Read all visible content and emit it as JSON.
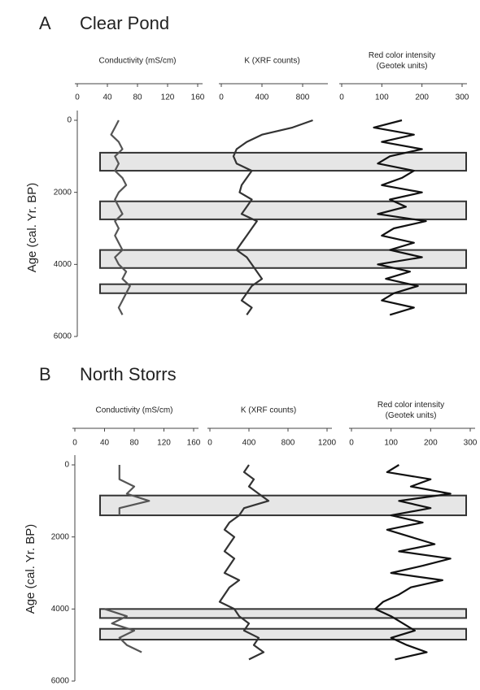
{
  "chart_data": [
    {
      "type": "line",
      "panel": "A",
      "title": "Clear Pond",
      "ylabel": "Age (cal. Yr. BP)",
      "ylim": [
        0,
        6000
      ],
      "yticks": [
        0,
        2000,
        4000,
        6000
      ],
      "x": [
        0,
        200,
        400,
        600,
        800,
        1000,
        1200,
        1400,
        1600,
        1800,
        2000,
        2200,
        2400,
        2600,
        2800,
        3000,
        3200,
        3400,
        3600,
        3800,
        4000,
        4200,
        4400,
        4600,
        4800,
        5000,
        5200,
        5400
      ],
      "bands": [
        [
          900,
          1400
        ],
        [
          2250,
          2750
        ],
        [
          3600,
          4100
        ],
        [
          4550,
          4800
        ]
      ],
      "series": [
        {
          "xlabel": [
            "Conductivity (mS/cm)"
          ],
          "color": "#555555",
          "xlim": [
            0,
            160
          ],
          "xticks": [
            0,
            40,
            80,
            120,
            160
          ],
          "values": [
            55,
            50,
            45,
            55,
            60,
            50,
            55,
            50,
            60,
            65,
            55,
            50,
            55,
            60,
            50,
            55,
            50,
            55,
            60,
            50,
            55,
            65,
            60,
            70,
            65,
            60,
            55,
            60
          ]
        },
        {
          "xlabel": [
            "K (XRF counts)"
          ],
          "color": "#333333",
          "xlim": [
            0,
            1000
          ],
          "xticks": [
            0,
            400,
            800
          ],
          "values": [
            900,
            700,
            400,
            250,
            150,
            120,
            150,
            300,
            250,
            200,
            180,
            300,
            250,
            200,
            350,
            300,
            250,
            200,
            150,
            250,
            300,
            350,
            400,
            300,
            250,
            200,
            300,
            250
          ]
        },
        {
          "xlabel": [
            "Red color intensity",
            "(Geotek units)"
          ],
          "color": "#111111",
          "xlim": [
            0,
            300
          ],
          "xticks": [
            0,
            100,
            200,
            300
          ],
          "values": [
            150,
            80,
            180,
            100,
            200,
            120,
            90,
            180,
            150,
            100,
            200,
            120,
            160,
            90,
            210,
            130,
            100,
            180,
            120,
            200,
            90,
            170,
            110,
            190,
            130,
            100,
            180,
            120
          ]
        }
      ]
    },
    {
      "type": "line",
      "panel": "B",
      "title": "North Storrs",
      "ylabel": "Age (cal. Yr. BP)",
      "ylim": [
        0,
        6000
      ],
      "yticks": [
        0,
        2000,
        4000,
        6000
      ],
      "x": [
        0,
        200,
        400,
        600,
        800,
        1000,
        1200,
        1400,
        1600,
        1800,
        2000,
        2200,
        2400,
        2600,
        2800,
        3000,
        3200,
        3400,
        3600,
        3800,
        4000,
        4200,
        4400,
        4600,
        4800,
        5000,
        5200,
        5400
      ],
      "bands": [
        [
          850,
          1400
        ],
        [
          4000,
          4250
        ],
        [
          4550,
          4850
        ]
      ],
      "series": [
        {
          "xlabel": [
            "Conductivity (mS/cm)"
          ],
          "color": "#555555",
          "xlim": [
            0,
            160
          ],
          "xticks": [
            0,
            40,
            80,
            120,
            160
          ],
          "values": [
            60,
            60,
            60,
            80,
            70,
            100,
            60,
            60,
            null,
            null,
            null,
            null,
            null,
            null,
            null,
            null,
            null,
            null,
            null,
            null,
            40,
            70,
            50,
            80,
            60,
            70,
            90,
            null
          ]
        },
        {
          "xlabel": [
            "K (XRF counts)"
          ],
          "color": "#333333",
          "xlim": [
            0,
            1200
          ],
          "xticks": [
            0,
            400,
            800,
            1200
          ],
          "values": [
            400,
            350,
            450,
            400,
            500,
            600,
            350,
            300,
            200,
            150,
            250,
            200,
            150,
            250,
            200,
            150,
            300,
            200,
            150,
            100,
            250,
            300,
            400,
            350,
            500,
            450,
            550,
            400
          ]
        },
        {
          "xlabel": [
            "Red color intensity",
            "(Geotek units)"
          ],
          "color": "#111111",
          "xlim": [
            0,
            300
          ],
          "xticks": [
            0,
            100,
            200,
            300
          ],
          "values": [
            120,
            90,
            200,
            150,
            250,
            120,
            200,
            100,
            180,
            90,
            150,
            210,
            120,
            250,
            180,
            100,
            230,
            150,
            120,
            80,
            60,
            100,
            130,
            160,
            100,
            140,
            190,
            110
          ]
        }
      ]
    }
  ]
}
